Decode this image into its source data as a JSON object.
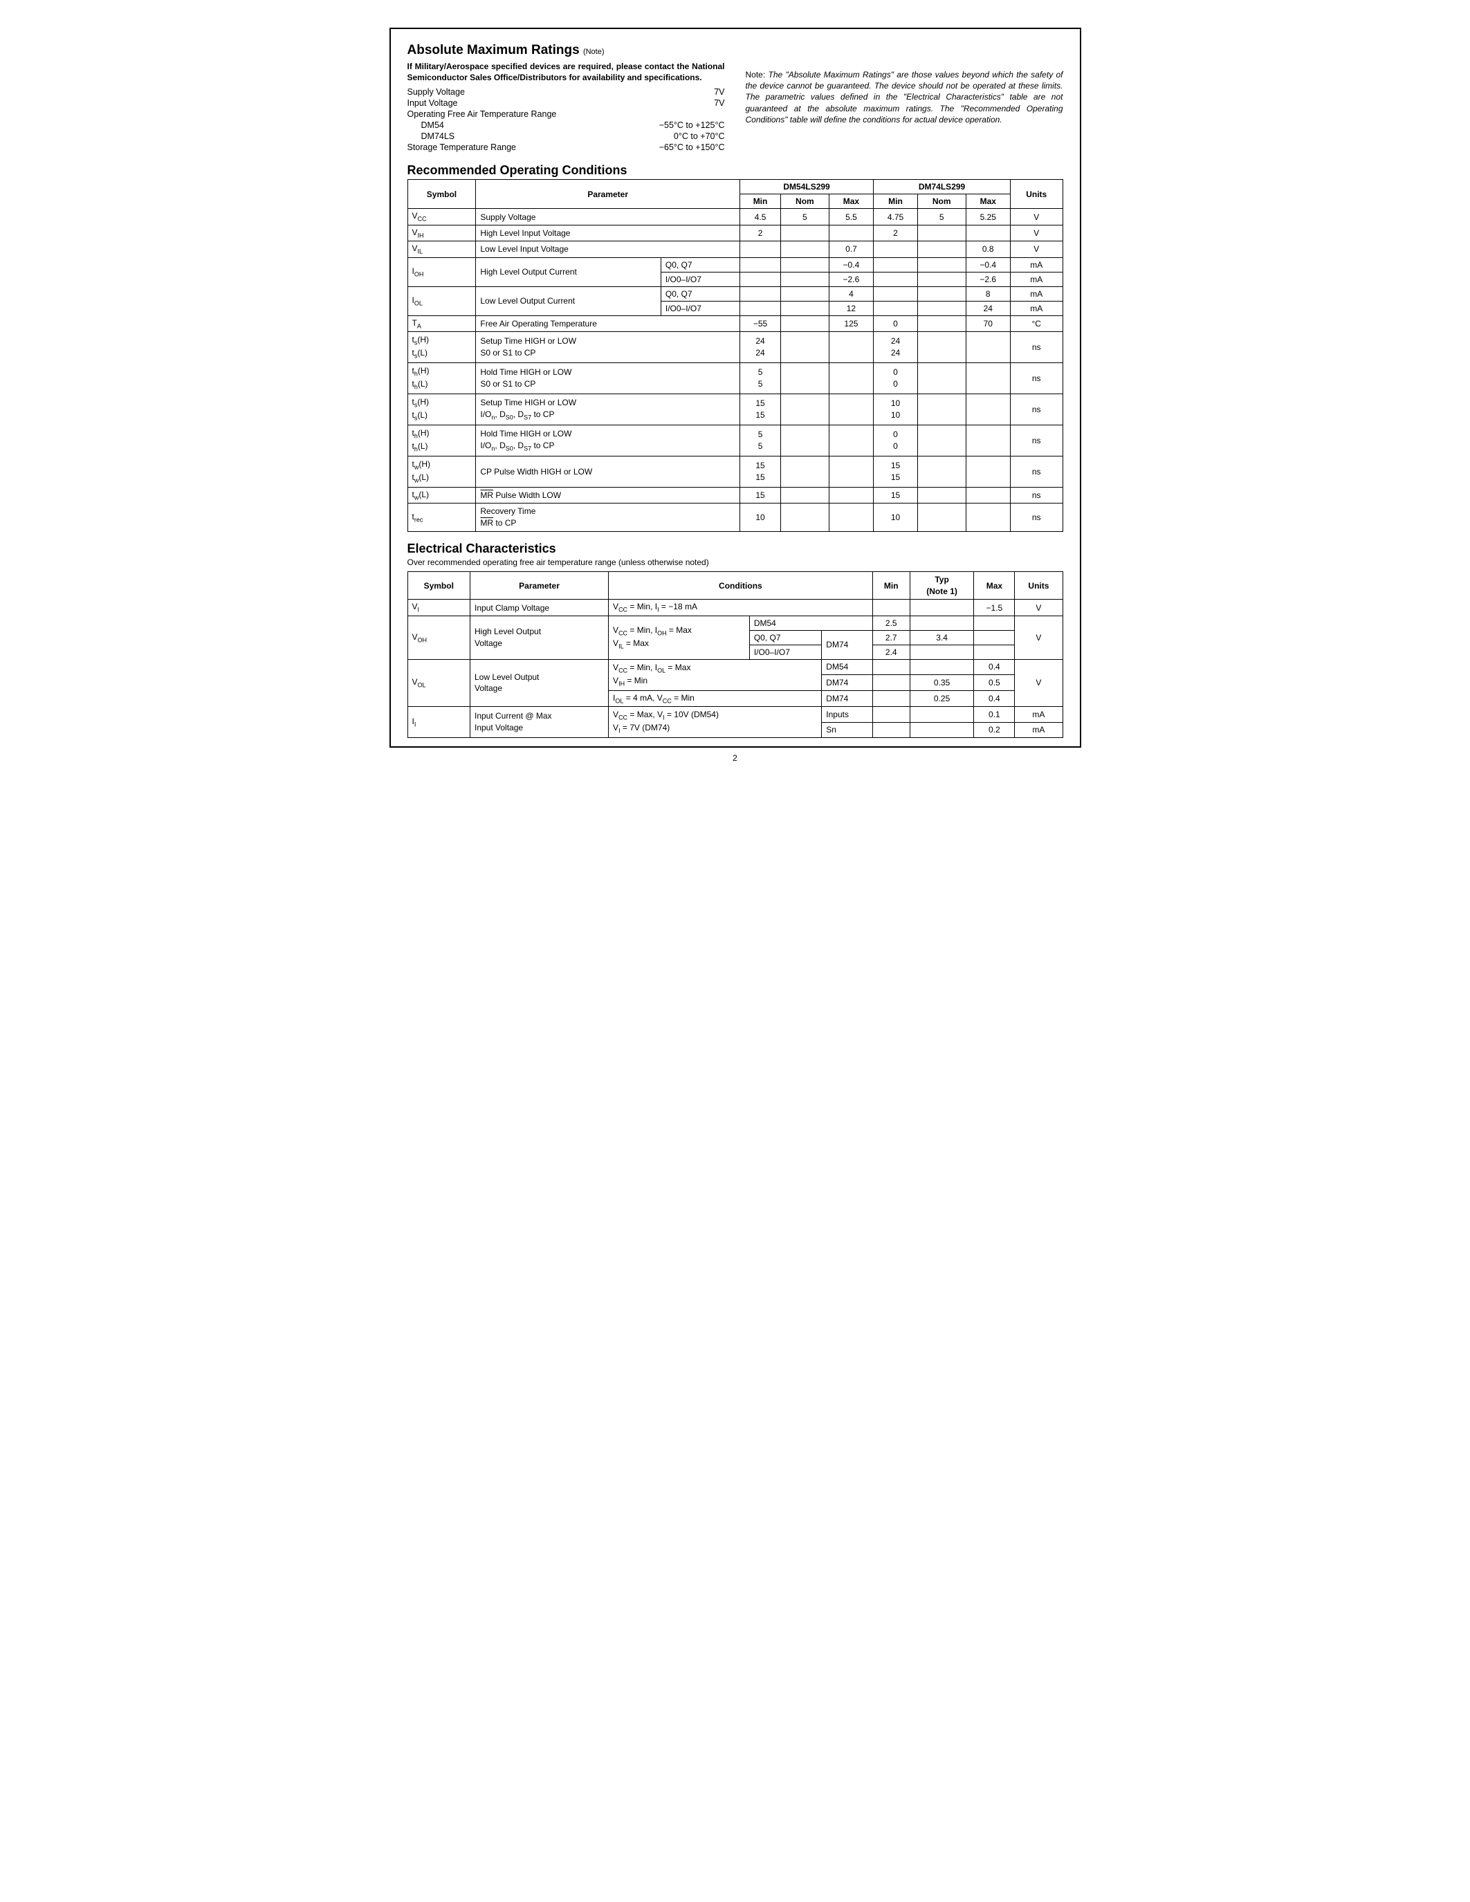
{
  "page_number": "2",
  "amr": {
    "heading": "Absolute Maximum Ratings",
    "heading_note": "(Note)",
    "military_note": "If Military/Aerospace specified devices are required, please contact the National Semiconductor Sales Office/Distributors for availability and specifications.",
    "rows": [
      {
        "label": "Supply Voltage",
        "value": "7V"
      },
      {
        "label": "Input Voltage",
        "value": "7V"
      }
    ],
    "temp_label": "Operating Free Air Temperature Range",
    "temp_sub": [
      {
        "label": "DM54",
        "value": "−55°C to +125°C"
      },
      {
        "label": "DM74LS",
        "value": "0°C to +70°C"
      }
    ],
    "storage": {
      "label": "Storage Temperature Range",
      "value": "−65°C to +150°C"
    },
    "side_note_prefix": "Note: ",
    "side_note": "The \"Absolute Maximum Ratings\" are those values beyond which the safety of the device cannot be guaranteed. The device should not be operated at these limits. The parametric values defined in the \"Electrical Characteristics\" table are not guaranteed at the absolute maximum ratings. The \"Recommended Operating Conditions\" table will define the conditions for actual device operation."
  },
  "roc": {
    "heading": "Recommended Operating Conditions",
    "headers": {
      "symbol": "Symbol",
      "parameter": "Parameter",
      "part1": "DM54LS299",
      "part2": "DM74LS299",
      "min": "Min",
      "nom": "Nom",
      "max": "Max",
      "units": "Units"
    },
    "rows": {
      "vcc": {
        "sym": "V",
        "sub": "CC",
        "param": "Supply Voltage",
        "d": [
          "4.5",
          "5",
          "5.5",
          "4.75",
          "5",
          "5.25"
        ],
        "u": "V"
      },
      "vih": {
        "sym": "V",
        "sub": "IH",
        "param": "High Level Input Voltage",
        "d": [
          "2",
          "",
          "",
          "2",
          "",
          ""
        ],
        "u": "V"
      },
      "vil": {
        "sym": "V",
        "sub": "IL",
        "param": "Low Level Input Voltage",
        "d": [
          "",
          "",
          "0.7",
          "",
          "",
          "0.8"
        ],
        "u": "V"
      },
      "ioh": {
        "sym": "I",
        "sub": "OH",
        "param": "High Level Output Current",
        "line1": {
          "cond": "Q0, Q7",
          "d": [
            "",
            "",
            "−0.4",
            "",
            "",
            "−0.4"
          ],
          "u": "mA"
        },
        "line2": {
          "cond": "I/O0–I/O7",
          "d": [
            "",
            "",
            "−2.6",
            "",
            "",
            "−2.6"
          ],
          "u": "mA"
        }
      },
      "iol": {
        "sym": "I",
        "sub": "OL",
        "param": "Low Level Output Current",
        "line1": {
          "cond": "Q0, Q7",
          "d": [
            "",
            "",
            "4",
            "",
            "",
            "8"
          ],
          "u": "mA"
        },
        "line2": {
          "cond": "I/O0–I/O7",
          "d": [
            "",
            "",
            "12",
            "",
            "",
            "24"
          ],
          "u": "mA"
        }
      },
      "ta": {
        "sym": "T",
        "sub": "A",
        "param": "Free Air Operating Temperature",
        "d": [
          "−55",
          "",
          "125",
          "0",
          "",
          "70"
        ],
        "u": "°C"
      },
      "ts1": {
        "sym_l1": "t",
        "sub_l1": "s",
        "suf_l1": "(H)",
        "sym_l2": "t",
        "sub_l2": "s",
        "suf_l2": "(L)",
        "param_l1": "Setup Time HIGH or LOW",
        "param_l2": "S0 or S1 to CP",
        "d": [
          "24\n24",
          "",
          "",
          "24\n24",
          "",
          ""
        ],
        "u": "ns"
      },
      "th1": {
        "sym_l1": "t",
        "sub_l1": "h",
        "suf_l1": "(H)",
        "sym_l2": "t",
        "sub_l2": "h",
        "suf_l2": "(L)",
        "param_l1": "Hold Time HIGH or LOW",
        "param_l2": "S0 or S1 to CP",
        "d": [
          "5\n5",
          "",
          "",
          "0\n0",
          "",
          ""
        ],
        "u": "ns"
      },
      "ts2": {
        "sym_l1": "t",
        "sub_l1": "s",
        "suf_l1": "(H)",
        "sym_l2": "t",
        "sub_l2": "s",
        "suf_l2": "(L)",
        "param_l1": "Setup Time HIGH or LOW",
        "param_l2_html": "I/O<sub>n</sub>, D<sub>S0</sub>, D<sub>S7</sub> to CP",
        "d": [
          "15\n15",
          "",
          "",
          "10\n10",
          "",
          ""
        ],
        "u": "ns"
      },
      "th2": {
        "sym_l1": "t",
        "sub_l1": "h",
        "suf_l1": "(H)",
        "sym_l2": "t",
        "sub_l2": "h",
        "suf_l2": "(L)",
        "param_l1": "Hold Time HIGH or LOW",
        "param_l2_html": "I/O<sub>n</sub>, D<sub>S0</sub>, D<sub>S7</sub> to CP",
        "d": [
          "5\n5",
          "",
          "",
          "0\n0",
          "",
          ""
        ],
        "u": "ns"
      },
      "tw1": {
        "sym_l1": "t",
        "sub_l1": "w",
        "suf_l1": "(H)",
        "sym_l2": "t",
        "sub_l2": "w",
        "suf_l2": "(L)",
        "param": "CP Pulse Width HIGH or LOW",
        "d": [
          "15\n15",
          "",
          "",
          "15\n15",
          "",
          ""
        ],
        "u": "ns"
      },
      "tw2": {
        "sym": "t",
        "sub": "w",
        "suf": "(L)",
        "param_html": "<span class='overline'>MR</span> Pulse Width LOW",
        "d": [
          "15",
          "",
          "",
          "15",
          "",
          ""
        ],
        "u": "ns"
      },
      "trec": {
        "sym": "t",
        "sub": "rec",
        "param_l1": "Recovery Time",
        "param_l2_html": "<span class='overline'>MR</span> to CP",
        "d": [
          "10",
          "",
          "",
          "10",
          "",
          ""
        ],
        "u": "ns"
      }
    }
  },
  "ec": {
    "heading": "Electrical Characteristics",
    "subtitle": "Over recommended operating free air temperature range (unless otherwise noted)",
    "headers": {
      "symbol": "Symbol",
      "parameter": "Parameter",
      "conditions": "Conditions",
      "min": "Min",
      "typ_l1": "Typ",
      "typ_l2": "(Note 1)",
      "max": "Max",
      "units": "Units"
    },
    "rows": {
      "vi": {
        "sym": "V",
        "sub": "I",
        "param": "Input Clamp Voltage",
        "cond_html": "V<sub>CC</sub> = Min, I<sub>I</sub> = −18 mA",
        "min": "",
        "typ": "",
        "max": "−1.5",
        "u": "V"
      },
      "voh": {
        "sym": "V",
        "sub": "OH",
        "param_l1": "High Level Output",
        "param_l2": "Voltage",
        "cond_html": "V<sub>CC</sub> = Min, I<sub>OH</sub> = Max<br>V<sub>IL</sub> = Max",
        "r1": {
          "part": "DM54",
          "min": "2.5",
          "typ": "",
          "max": ""
        },
        "r2": {
          "sub": "Q0, Q7",
          "part": "DM74",
          "min": "2.7",
          "typ": "3.4",
          "max": ""
        },
        "r3": {
          "sub": "I/O0–I/O7",
          "min": "2.4",
          "typ": "",
          "max": ""
        },
        "u": "V"
      },
      "vol": {
        "sym": "V",
        "sub": "OL",
        "param_l1": "Low Level Output",
        "param_l2": "Voltage",
        "cond1_html": "V<sub>CC</sub> = Min, I<sub>OL</sub> = Max<br>V<sub>IH</sub> = Min",
        "r1": {
          "part": "DM54",
          "min": "",
          "typ": "",
          "max": "0.4"
        },
        "r2": {
          "part": "DM74",
          "min": "",
          "typ": "0.35",
          "max": "0.5"
        },
        "cond2_html": "I<sub>OL</sub> = 4 mA, V<sub>CC</sub> = Min",
        "r3": {
          "part": "DM74",
          "min": "",
          "typ": "0.25",
          "max": "0.4"
        },
        "u": "V"
      },
      "ii": {
        "sym": "I",
        "sub": "I",
        "param_l1": "Input Current @ Max",
        "param_l2": "Input Voltage",
        "cond_html": "V<sub>CC</sub> = Max, V<sub>I</sub> = 10V (DM54)<br>V<sub>I</sub> = 7V (DM74)",
        "r1": {
          "part": "Inputs",
          "min": "",
          "typ": "",
          "max": "0.1",
          "u": "mA"
        },
        "r2": {
          "part": "Sn",
          "min": "",
          "typ": "",
          "max": "0.2",
          "u": "mA"
        }
      }
    }
  }
}
